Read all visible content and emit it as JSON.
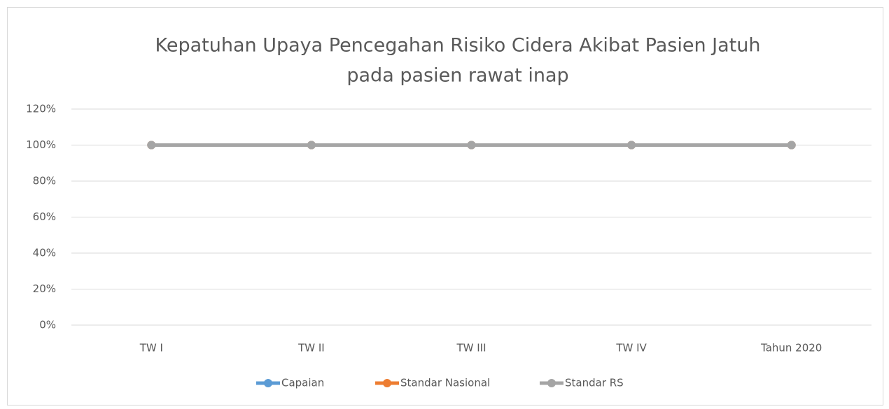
{
  "chart_data": {
    "type": "line",
    "title": [
      "Kepatuhan Upaya Pencegahan Risiko Cidera Akibat Pasien Jatuh",
      "pada pasien rawat inap"
    ],
    "categories": [
      "TW I",
      "TW II",
      "TW III",
      "TW IV",
      "Tahun 2020"
    ],
    "series": [
      {
        "name": "Capaian",
        "color": "#5b9bd5",
        "values": [
          100,
          100,
          100,
          100,
          100
        ]
      },
      {
        "name": "Standar Nasional",
        "color": "#ed7d31",
        "values": [
          100,
          100,
          100,
          100,
          100
        ]
      },
      {
        "name": "Standar RS",
        "color": "#a5a5a5",
        "values": [
          100,
          100,
          100,
          100,
          100
        ]
      }
    ],
    "ylim": [
      0,
      120
    ],
    "yticks": [
      {
        "value": 0,
        "label": "0%"
      },
      {
        "value": 20,
        "label": "20%"
      },
      {
        "value": 40,
        "label": "40%"
      },
      {
        "value": 60,
        "label": "60%"
      },
      {
        "value": 80,
        "label": "80%"
      },
      {
        "value": 100,
        "label": "100%"
      },
      {
        "value": 120,
        "label": "120%"
      }
    ],
    "grid": true,
    "legend": "bottom"
  }
}
